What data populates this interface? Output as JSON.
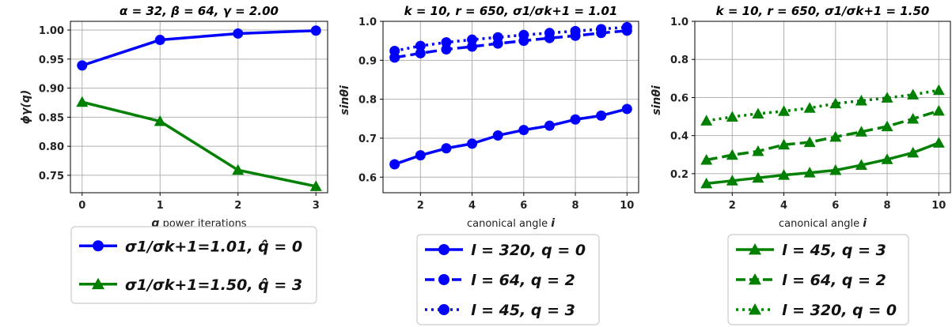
{
  "colors": {
    "blue": "#0000ff",
    "green": "#008000"
  },
  "chart_data": [
    {
      "type": "line",
      "title": "α = 32, β = 64, γ = 2.00",
      "xlabel_var": "q",
      "xlabel_rest": " power iterations",
      "ylabel": "ϕγ(q)",
      "xlim": [
        -0.15,
        3.15
      ],
      "ylim": [
        0.72,
        1.015
      ],
      "xticks": [
        0,
        1,
        2,
        3
      ],
      "yticks": [
        0.75,
        0.8,
        0.85,
        0.9,
        0.95,
        1.0
      ],
      "xtick_labels": [
        "0",
        "1",
        "2",
        "3"
      ],
      "ytick_labels": [
        "0.75",
        "0.80",
        "0.85",
        "0.90",
        "0.95",
        "1.00"
      ],
      "grid": true,
      "legend_position": "below",
      "series": [
        {
          "name": "σ1/σk+1=1.01, q̂ = 0",
          "color": "blue",
          "marker": "circle",
          "dash": "solid",
          "x": [
            0,
            1,
            2,
            3
          ],
          "y": [
            0.939,
            0.983,
            0.994,
            0.999
          ]
        },
        {
          "name": "σ1/σk+1=1.50, q̂ = 3",
          "color": "green",
          "marker": "triangle",
          "dash": "solid",
          "x": [
            0,
            1,
            2,
            3
          ],
          "y": [
            0.876,
            0.843,
            0.759,
            0.731
          ]
        }
      ]
    },
    {
      "type": "line",
      "title": "k = 10, r = 650, σ1/σk+1 = 1.01",
      "xlabel_rest": "canonical angle ",
      "xlabel_var": "i",
      "ylabel": "sinθi",
      "xlim": [
        0.55,
        10.45
      ],
      "ylim": [
        0.56,
        1.0
      ],
      "xticks": [
        2,
        4,
        6,
        8,
        10
      ],
      "yticks": [
        0.6,
        0.7,
        0.8,
        0.9,
        1.0
      ],
      "xtick_labels": [
        "2",
        "4",
        "6",
        "8",
        "10"
      ],
      "ytick_labels": [
        "0.6",
        "0.7",
        "0.8",
        "0.9",
        "1.0"
      ],
      "grid": true,
      "legend_position": "below",
      "series": [
        {
          "name": "l = 320, q = 0",
          "color": "blue",
          "marker": "circle",
          "dash": "solid",
          "x": [
            1,
            2,
            3,
            4,
            5,
            6,
            7,
            8,
            9,
            10
          ],
          "y": [
            0.633,
            0.656,
            0.674,
            0.686,
            0.707,
            0.721,
            0.732,
            0.748,
            0.758,
            0.775
          ]
        },
        {
          "name": "l = 64, q = 2",
          "color": "blue",
          "marker": "circle",
          "dash": "dashed",
          "x": [
            1,
            2,
            3,
            4,
            5,
            6,
            7,
            8,
            9,
            10
          ],
          "y": [
            0.907,
            0.918,
            0.928,
            0.935,
            0.943,
            0.95,
            0.957,
            0.963,
            0.97,
            0.976
          ]
        },
        {
          "name": "l = 45, q = 3",
          "color": "blue",
          "marker": "circle",
          "dash": "dotted",
          "x": [
            1,
            2,
            3,
            4,
            5,
            6,
            7,
            8,
            9,
            10
          ],
          "y": [
            0.924,
            0.937,
            0.946,
            0.953,
            0.959,
            0.965,
            0.97,
            0.975,
            0.98,
            0.985
          ]
        }
      ]
    },
    {
      "type": "line",
      "title": "k = 10, r = 650, σ1/σk+1 = 1.50",
      "xlabel_rest": "canonical angle ",
      "xlabel_var": "i",
      "ylabel": "sinθi",
      "xlim": [
        0.55,
        10.45
      ],
      "ylim": [
        0.1,
        1.0
      ],
      "xticks": [
        2,
        4,
        6,
        8,
        10
      ],
      "yticks": [
        0.2,
        0.4,
        0.6,
        0.8,
        1.0
      ],
      "xtick_labels": [
        "2",
        "4",
        "6",
        "8",
        "10"
      ],
      "ytick_labels": [
        "0.2",
        "0.4",
        "0.6",
        "0.8",
        "1.0"
      ],
      "grid": true,
      "legend_position": "below",
      "series": [
        {
          "name": "l = 45, q = 3",
          "color": "green",
          "marker": "triangle",
          "dash": "solid",
          "x": [
            1,
            2,
            3,
            4,
            5,
            6,
            7,
            8,
            9,
            10
          ],
          "y": [
            0.148,
            0.163,
            0.178,
            0.193,
            0.205,
            0.218,
            0.245,
            0.275,
            0.31,
            0.362
          ]
        },
        {
          "name": "l = 64, q = 2",
          "color": "green",
          "marker": "triangle",
          "dash": "dashed",
          "x": [
            1,
            2,
            3,
            4,
            5,
            6,
            7,
            8,
            9,
            10
          ],
          "y": [
            0.272,
            0.298,
            0.318,
            0.352,
            0.365,
            0.393,
            0.42,
            0.448,
            0.488,
            0.53
          ]
        },
        {
          "name": "l = 320, q = 0",
          "color": "green",
          "marker": "triangle",
          "dash": "dotted",
          "x": [
            1,
            2,
            3,
            4,
            5,
            6,
            7,
            8,
            9,
            10
          ],
          "y": [
            0.478,
            0.498,
            0.515,
            0.528,
            0.545,
            0.568,
            0.583,
            0.598,
            0.615,
            0.638
          ]
        }
      ]
    }
  ]
}
